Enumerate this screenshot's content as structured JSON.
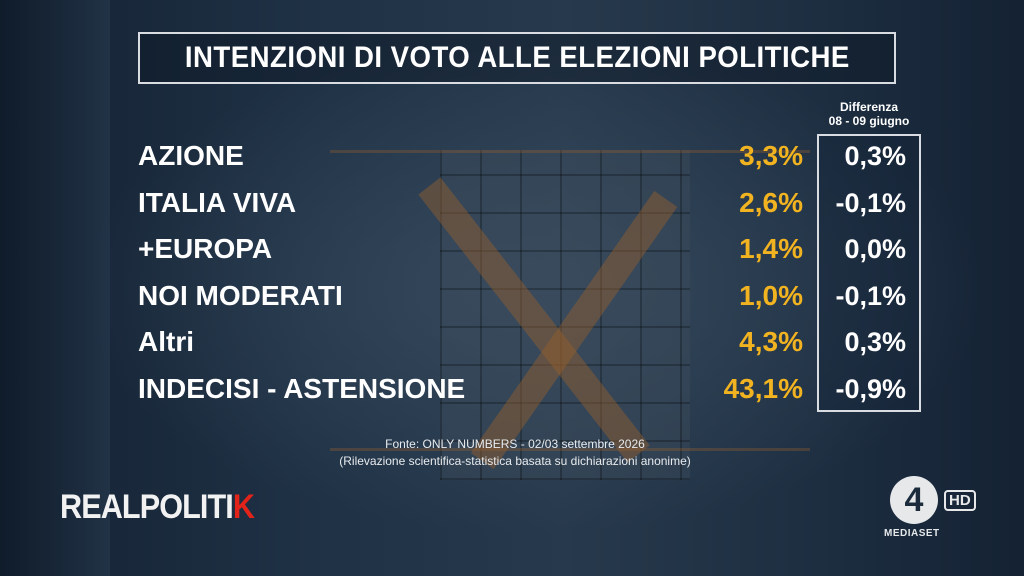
{
  "chart_data": {
    "type": "table",
    "title": "INTENZIONI DI VOTO ALLE ELEZIONI POLITICHE",
    "difference_header": [
      "Differenza",
      "08 - 09 giugno"
    ],
    "rows": [
      {
        "party": "AZIONE",
        "value": "3,3%",
        "diff": "0,3%"
      },
      {
        "party": "ITALIA VIVA",
        "value": "2,6%",
        "diff": "-0,1%"
      },
      {
        "party": "+EUROPA",
        "value": "1,4%",
        "diff": "0,0%"
      },
      {
        "party": "NOI MODERATI",
        "value": "1,0%",
        "diff": "-0,1%"
      },
      {
        "party": "Altri",
        "value": "4,3%",
        "diff": "0,3%"
      },
      {
        "party": "INDECISI - ASTENSIONE",
        "value": "43,1%",
        "diff": "-0,9%"
      }
    ],
    "source_line1": "Fonte: ONLY NUMBERS - 02/03 settembre 2026",
    "source_line2": "(Rilevazione scientifica-statistica basata su dichiarazioni anonime)"
  },
  "colors": {
    "value_color": "#f2b321",
    "text_color": "#ffffff",
    "logo_accent": "#e2231a"
  },
  "branding": {
    "show_logo_part1": "REALPOLITI",
    "show_logo_part2": "K",
    "channel_number": "4",
    "channel_hd": "HD",
    "channel_name": "MEDIASET"
  }
}
